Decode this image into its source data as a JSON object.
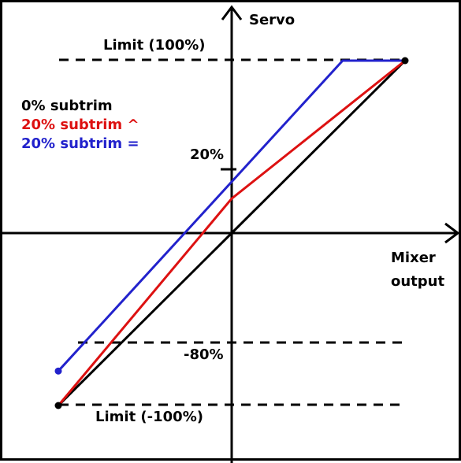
{
  "labels": {
    "servo_axis": "Servo",
    "mixer_axis_line1": "Mixer",
    "mixer_axis_line2": "output",
    "limit_top": "Limit (100%)",
    "limit_bottom": "Limit (-100%)",
    "mark_20": "20%",
    "mark_minus80": "-80%"
  },
  "legend": [
    {
      "text": "0% subtrim",
      "color": "#000000"
    },
    {
      "text": "20% subtrim ^",
      "color": "#dd1111"
    },
    {
      "text": "20% subtrim =",
      "color": "#2222cc"
    }
  ],
  "curves": {
    "black": {
      "color": "#000000",
      "points": [
        [
          -100,
          -100
        ],
        [
          0,
          0
        ],
        [
          100,
          100
        ]
      ]
    },
    "red": {
      "color": "#dd1111",
      "points": [
        [
          -100,
          -100
        ],
        [
          0,
          20
        ],
        [
          100,
          100
        ]
      ]
    },
    "blue": {
      "color": "#2222cc",
      "points": [
        [
          -100,
          -80
        ],
        [
          64,
          100
        ],
        [
          100,
          100
        ]
      ]
    }
  },
  "reference_levels": [
    100,
    -80,
    -100
  ]
}
